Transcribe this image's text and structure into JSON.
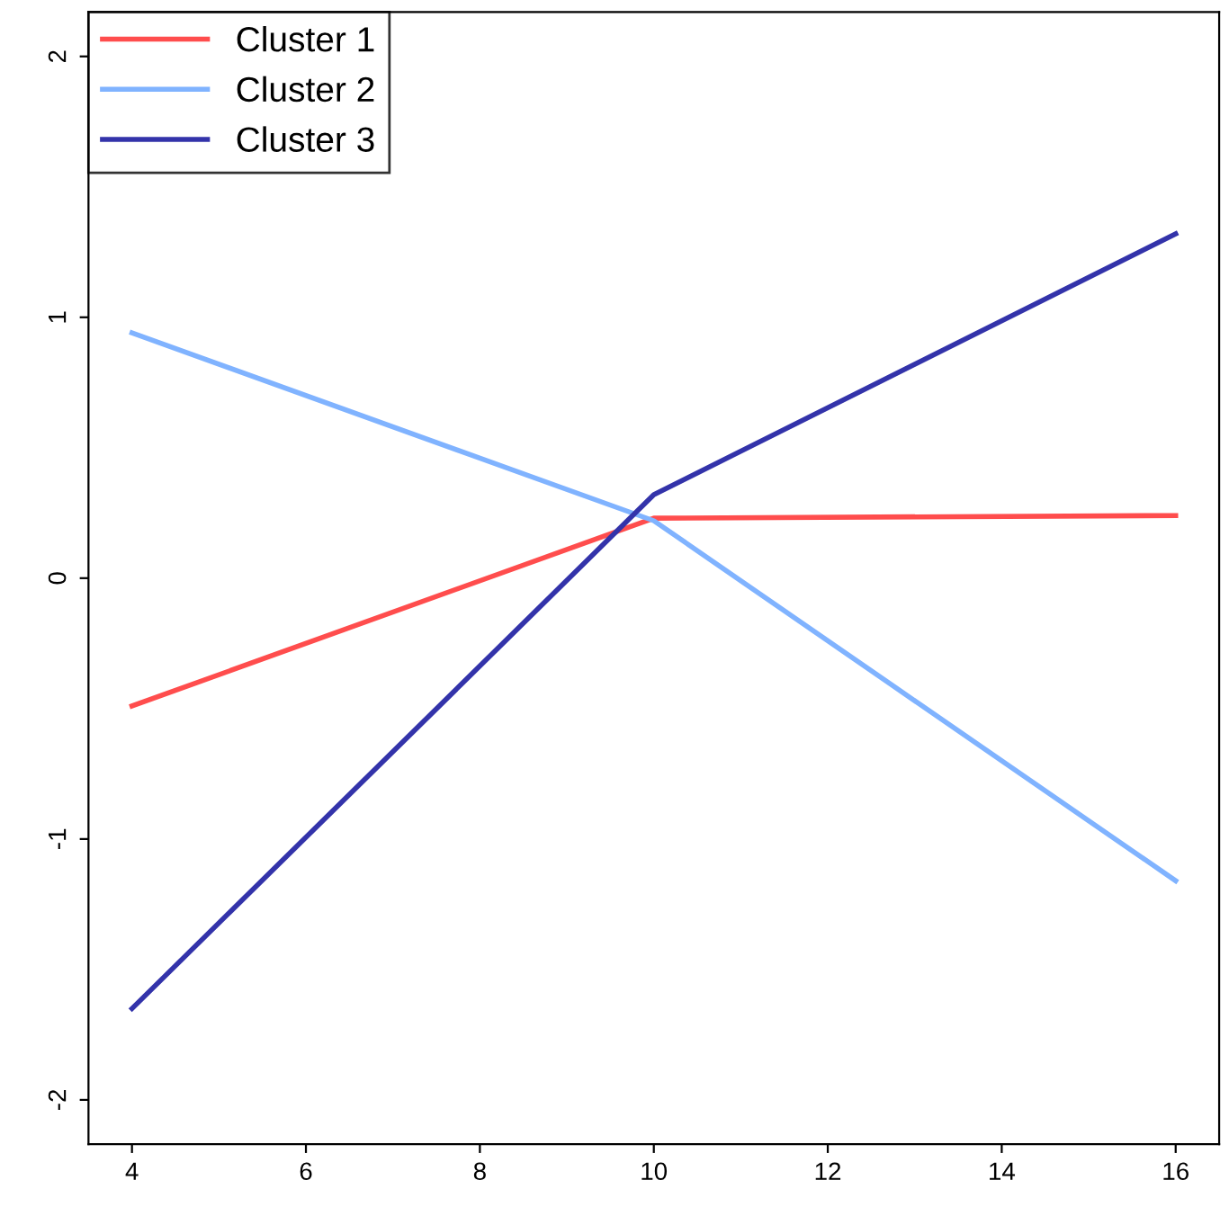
{
  "chart_data": {
    "type": "line",
    "x": [
      4,
      10,
      16
    ],
    "series": [
      {
        "name": "Cluster 1",
        "color": "#ff4d4d",
        "values": [
          -0.49,
          0.23,
          0.24
        ]
      },
      {
        "name": "Cluster 2",
        "color": "#80b3ff",
        "values": [
          0.94,
          0.22,
          -1.16
        ]
      },
      {
        "name": "Cluster 3",
        "color": "#3333aa",
        "values": [
          -1.65,
          0.32,
          1.32
        ]
      }
    ],
    "xlim": [
      3.5,
      16.5
    ],
    "ylim": [
      -2.17,
      2.17
    ],
    "xticks": [
      4,
      6,
      8,
      10,
      12,
      14,
      16
    ],
    "yticks": [
      -2,
      -1,
      0,
      1,
      2
    ],
    "grid": false,
    "legend": "top left",
    "marker": "none",
    "line_style": "solid"
  }
}
